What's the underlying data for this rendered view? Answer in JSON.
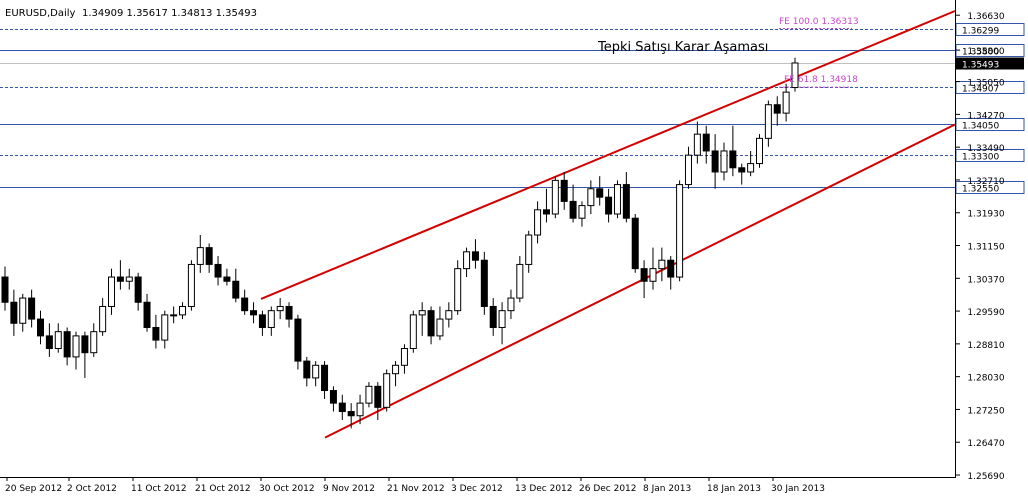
{
  "header": {
    "symbol": "EURUSD,Daily",
    "ohlc": "1.34909 1.35617 1.34813 1.35493"
  },
  "annotations": {
    "main_label": "Tepki Satışı Karar Aşaması",
    "fe_100": "FE 100.0 1.36313",
    "fe_618": "FE 61.8 1.34918"
  },
  "colors": {
    "background": "#ffffff",
    "axis": "#000000",
    "channel": "#d40000",
    "hline": "#3355aa",
    "fibo": "#cc44cc",
    "price_tag_bg": "#000000",
    "price_tag_fg": "#ffffff"
  },
  "chart_data": {
    "type": "candlestick",
    "ylim": [
      1.2569,
      1.3673
    ],
    "y_ticks": [
      "1.36630",
      "1.35800",
      "1.35050",
      "1.34270",
      "1.33490",
      "1.32710",
      "1.31930",
      "1.31150",
      "1.30370",
      "1.29590",
      "1.28810",
      "1.28030",
      "1.27250",
      "1.26470",
      "1.25690"
    ],
    "x_labels": [
      "20 Sep 2012",
      "2 Oct 2012",
      "11 Oct 2012",
      "21 Oct 2012",
      "30 Oct 2012",
      "9 Nov 2012",
      "21 Nov 2012",
      "3 Dec 2012",
      "13 Dec 2012",
      "26 Dec 2012",
      "8 Jan 2013",
      "18 Jan 2013",
      "30 Jan 2013"
    ],
    "horizontal_levels": [
      {
        "price": 1.3629,
        "label": "1.36299",
        "style": "dashed"
      },
      {
        "price": 1.358,
        "label": "1.35800",
        "style": "solid"
      },
      {
        "price": 1.3491,
        "label": "1.34907",
        "style": "dashed"
      },
      {
        "price": 1.3405,
        "label": "1.34050",
        "style": "solid"
      },
      {
        "price": 1.333,
        "label": "1.33300",
        "style": "dashed"
      },
      {
        "price": 1.3255,
        "label": "1.32550",
        "style": "solid"
      }
    ],
    "current_price": {
      "price": 1.35493,
      "label": "1.35493"
    },
    "channel_upper": {
      "start": [
        "30 Oct 2012",
        1.2988
      ],
      "end": [
        "5 Feb 2013",
        1.3673
      ]
    },
    "channel_lower": {
      "start": [
        "9 Nov 2012",
        1.2658
      ],
      "end": [
        "5 Feb 2013",
        1.3403
      ]
    },
    "candles": [
      [
        1.304,
        1.3065,
        1.296,
        1.298
      ],
      [
        1.298,
        1.301,
        1.29,
        1.293
      ],
      [
        1.293,
        1.3,
        1.291,
        1.299
      ],
      [
        1.299,
        1.301,
        1.292,
        1.294
      ],
      [
        1.294,
        1.296,
        1.288,
        1.29
      ],
      [
        1.29,
        1.293,
        1.285,
        1.287
      ],
      [
        1.287,
        1.293,
        1.286,
        1.291
      ],
      [
        1.291,
        1.292,
        1.283,
        1.285
      ],
      [
        1.285,
        1.291,
        1.282,
        1.29
      ],
      [
        1.29,
        1.291,
        1.28,
        1.286
      ],
      [
        1.286,
        1.293,
        1.285,
        1.291
      ],
      [
        1.291,
        1.299,
        1.29,
        1.297
      ],
      [
        1.297,
        1.306,
        1.295,
        1.304
      ],
      [
        1.304,
        1.308,
        1.301,
        1.303
      ],
      [
        1.303,
        1.306,
        1.301,
        1.304
      ],
      [
        1.304,
        1.305,
        1.296,
        1.298
      ],
      [
        1.298,
        1.3,
        1.291,
        1.292
      ],
      [
        1.292,
        1.295,
        1.287,
        1.289
      ],
      [
        1.289,
        1.296,
        1.287,
        1.295
      ],
      [
        1.295,
        1.297,
        1.293,
        1.295
      ],
      [
        1.295,
        1.298,
        1.294,
        1.297
      ],
      [
        1.297,
        1.308,
        1.296,
        1.307
      ],
      [
        1.307,
        1.314,
        1.305,
        1.311
      ],
      [
        1.311,
        1.312,
        1.305,
        1.307
      ],
      [
        1.307,
        1.309,
        1.302,
        1.304
      ],
      [
        1.304,
        1.306,
        1.302,
        1.303
      ],
      [
        1.303,
        1.306,
        1.298,
        1.299
      ],
      [
        1.299,
        1.301,
        1.295,
        1.296
      ],
      [
        1.296,
        1.298,
        1.293,
        1.295
      ],
      [
        1.295,
        1.296,
        1.29,
        1.292
      ],
      [
        1.292,
        1.297,
        1.29,
        1.296
      ],
      [
        1.296,
        1.299,
        1.294,
        1.297
      ],
      [
        1.297,
        1.298,
        1.292,
        1.294
      ],
      [
        1.294,
        1.295,
        1.282,
        1.284
      ],
      [
        1.284,
        1.285,
        1.278,
        1.28
      ],
      [
        1.28,
        1.284,
        1.278,
        1.283
      ],
      [
        1.283,
        1.284,
        1.275,
        1.277
      ],
      [
        1.277,
        1.278,
        1.272,
        1.274
      ],
      [
        1.274,
        1.276,
        1.27,
        1.272
      ],
      [
        1.272,
        1.274,
        1.268,
        1.271
      ],
      [
        1.271,
        1.276,
        1.269,
        1.274
      ],
      [
        1.274,
        1.279,
        1.273,
        1.278
      ],
      [
        1.278,
        1.279,
        1.27,
        1.273
      ],
      [
        1.273,
        1.282,
        1.272,
        1.281
      ],
      [
        1.281,
        1.284,
        1.278,
        1.283
      ],
      [
        1.283,
        1.288,
        1.281,
        1.287
      ],
      [
        1.287,
        1.296,
        1.286,
        1.295
      ],
      [
        1.295,
        1.298,
        1.29,
        1.296
      ],
      [
        1.296,
        1.297,
        1.288,
        1.29
      ],
      [
        1.29,
        1.297,
        1.289,
        1.294
      ],
      [
        1.294,
        1.298,
        1.292,
        1.296
      ],
      [
        1.296,
        1.308,
        1.295,
        1.306
      ],
      [
        1.306,
        1.311,
        1.304,
        1.31
      ],
      [
        1.31,
        1.313,
        1.306,
        1.308
      ],
      [
        1.308,
        1.31,
        1.295,
        1.297
      ],
      [
        1.297,
        1.299,
        1.29,
        1.292
      ],
      [
        1.292,
        1.298,
        1.288,
        1.296
      ],
      [
        1.296,
        1.301,
        1.294,
        1.299
      ],
      [
        1.299,
        1.309,
        1.298,
        1.307
      ],
      [
        1.307,
        1.315,
        1.305,
        1.314
      ],
      [
        1.314,
        1.322,
        1.312,
        1.32
      ],
      [
        1.32,
        1.325,
        1.317,
        1.319
      ],
      [
        1.319,
        1.328,
        1.318,
        1.327
      ],
      [
        1.327,
        1.329,
        1.32,
        1.322
      ],
      [
        1.322,
        1.326,
        1.317,
        1.318
      ],
      [
        1.318,
        1.322,
        1.316,
        1.321
      ],
      [
        1.321,
        1.327,
        1.319,
        1.325
      ],
      [
        1.325,
        1.328,
        1.321,
        1.323
      ],
      [
        1.323,
        1.325,
        1.317,
        1.319
      ],
      [
        1.319,
        1.327,
        1.318,
        1.326
      ],
      [
        1.326,
        1.329,
        1.317,
        1.318
      ],
      [
        1.318,
        1.319,
        1.305,
        1.306
      ],
      [
        1.306,
        1.308,
        1.299,
        1.303
      ],
      [
        1.303,
        1.311,
        1.301,
        1.306
      ],
      [
        1.306,
        1.311,
        1.303,
        1.308
      ],
      [
        1.308,
        1.309,
        1.301,
        1.304
      ],
      [
        1.304,
        1.327,
        1.303,
        1.326
      ],
      [
        1.326,
        1.335,
        1.325,
        1.333
      ],
      [
        1.333,
        1.341,
        1.331,
        1.338
      ],
      [
        1.338,
        1.34,
        1.331,
        1.334
      ],
      [
        1.334,
        1.338,
        1.325,
        1.329
      ],
      [
        1.329,
        1.336,
        1.327,
        1.334
      ],
      [
        1.334,
        1.34,
        1.328,
        1.33
      ],
      [
        1.33,
        1.331,
        1.326,
        1.329
      ],
      [
        1.329,
        1.334,
        1.328,
        1.331
      ],
      [
        1.331,
        1.338,
        1.33,
        1.337
      ],
      [
        1.337,
        1.346,
        1.335,
        1.345
      ],
      [
        1.345,
        1.347,
        1.34,
        1.343
      ],
      [
        1.343,
        1.35,
        1.341,
        1.348
      ],
      [
        1.34909,
        1.35617,
        1.34813,
        1.35493
      ]
    ]
  }
}
